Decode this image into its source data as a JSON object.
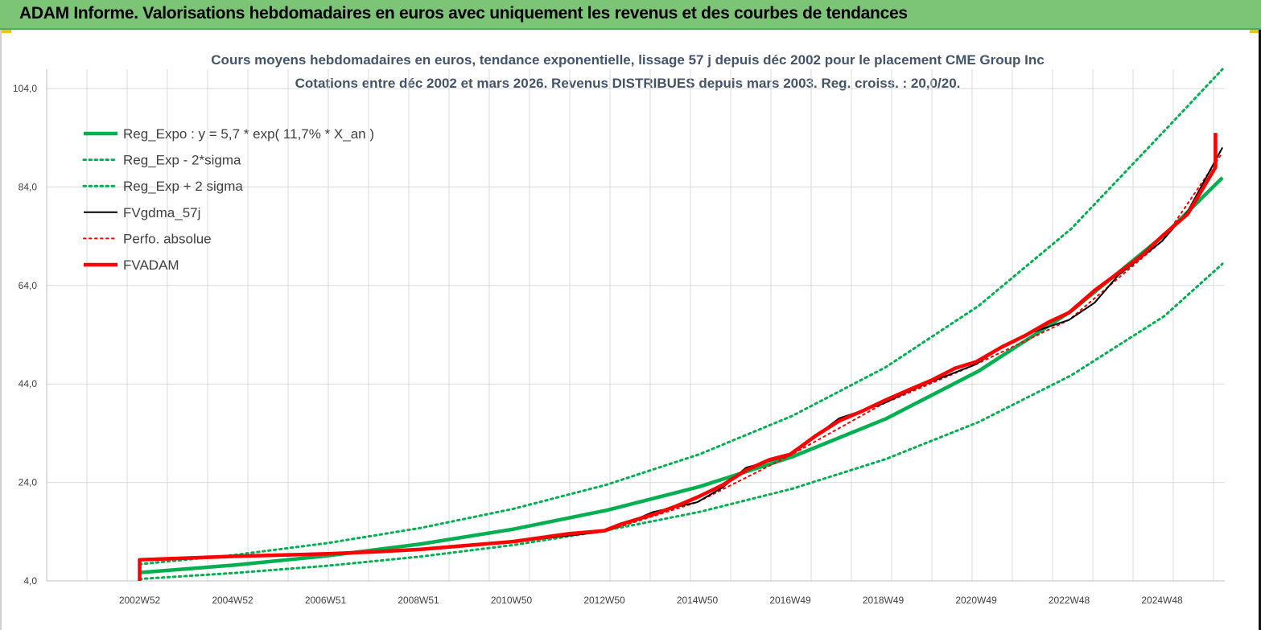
{
  "header": {
    "title": "ADAM Informe. Valorisations hebdomadaires en euros avec uniquement les revenus et des courbes de tendances"
  },
  "colors": {
    "header_bg": "#7cc576",
    "green": "#00b050",
    "black": "#000000",
    "red": "#ff0000",
    "grid": "#d9d9d9"
  },
  "chart_data": {
    "type": "line",
    "title_line1": "Cours moyens hebdomadaires en euros, tendance exponentielle, lissage 57 j depuis déc 2002 pour le placement CME Group Inc",
    "title_line2": "Cotations entre déc 2002 et mars 2026. Revenus DISTRIBUES depuis mars 2003. Reg. croiss. : 20,0/20.",
    "ylim": [
      4,
      104
    ],
    "yticks": [
      4,
      24,
      44,
      64,
      84,
      104
    ],
    "ytick_labels": [
      "4,0",
      "24,0",
      "44,0",
      "64,0",
      "84,0",
      "104,0"
    ],
    "xlim": [
      2000.95,
      2026.3
    ],
    "xticks": [
      2002.95,
      2004.95,
      2006.95,
      2008.95,
      2010.95,
      2012.95,
      2014.95,
      2016.95,
      2018.95,
      2020.95,
      2022.95,
      2024.95
    ],
    "xtick_labels": [
      "2002W52",
      "2004W52",
      "2006W51",
      "2008W51",
      "2010W50",
      "2012W50",
      "2014W50",
      "2016W49",
      "2018W49",
      "2020W49",
      "2022W48",
      "2024W48"
    ],
    "legend_position": "top-left",
    "series": [
      {
        "name": "Reg_Expo : y = 5,7 * exp( 11,7% *  X_an )",
        "color": "#00b050",
        "style": "solid-thick",
        "x": [
          2002.95,
          2005,
          2007,
          2009,
          2011,
          2013,
          2015,
          2017,
          2019,
          2021,
          2023,
          2025,
          2026.25
        ],
        "values": [
          5.7,
          7.22,
          9.11,
          11.5,
          14.52,
          18.34,
          23.15,
          29.23,
          36.9,
          46.59,
          58.82,
          74.26,
          85.9
        ]
      },
      {
        "name": "Reg_Exp - 2*sigma",
        "color": "#00b050",
        "style": "dotted",
        "x": [
          2002.95,
          2005,
          2007,
          2009,
          2011,
          2013,
          2015,
          2017,
          2019,
          2021,
          2023,
          2025,
          2026.25
        ],
        "values": [
          4.4,
          5.61,
          7.09,
          8.95,
          11.3,
          14.27,
          18.02,
          22.74,
          28.72,
          36.26,
          45.77,
          57.79,
          68.4
        ]
      },
      {
        "name": "Reg_Exp + 2 sigma",
        "color": "#00b050",
        "style": "dotted",
        "x": [
          2002.95,
          2005,
          2007,
          2009,
          2011,
          2013,
          2015,
          2017,
          2019,
          2021,
          2023,
          2025,
          2026.25
        ],
        "values": [
          7.4,
          9.28,
          11.7,
          14.77,
          18.65,
          23.55,
          29.73,
          37.54,
          47.39,
          59.84,
          75.55,
          95.39,
          110.3
        ]
      },
      {
        "name": "FVgdma_57j",
        "color": "#000000",
        "style": "solid",
        "x": [
          2003.1,
          2005,
          2007,
          2009,
          2011,
          2012.95,
          2013.5,
          2014,
          2014.95,
          2015.5,
          2016,
          2016.95,
          2017.5,
          2018,
          2018.95,
          2019.5,
          2020,
          2020.95,
          2021.5,
          2022,
          2022.95,
          2023.5,
          2024,
          2024.95,
          2025.5,
          2026.25
        ],
        "values": [
          8.3,
          9.0,
          9.5,
          10.4,
          12.0,
          14.0,
          16.0,
          18.0,
          20.0,
          23.0,
          27.0,
          29.5,
          33.5,
          37.0,
          40.0,
          42.5,
          44.5,
          48.0,
          51.5,
          54.0,
          57.0,
          60.5,
          66.0,
          73.0,
          79.0,
          92.0
        ]
      },
      {
        "name": "Perfo. absolue",
        "color": "#ff0000",
        "style": "dotted",
        "x": [
          2003.1,
          2005,
          2007,
          2009,
          2011,
          2012.95,
          2014.95,
          2016.95,
          2018.95,
          2020.95,
          2022.95,
          2024.95,
          2026.25
        ],
        "values": [
          8.3,
          8.9,
          9.4,
          10.3,
          11.9,
          14.0,
          20.0,
          29.5,
          40.0,
          48.0,
          57.0,
          73.0,
          91.0
        ]
      },
      {
        "name": "FVADAM",
        "color": "#ff0000",
        "style": "solid-thick",
        "x": [
          2002.95,
          2002.95,
          2005,
          2007,
          2008,
          2009,
          2010,
          2011,
          2011.6,
          2012.2,
          2012.95,
          2013.3,
          2014,
          2014.5,
          2014.95,
          2015.5,
          2016,
          2016.5,
          2016.95,
          2017.5,
          2018,
          2018.5,
          2018.95,
          2019.5,
          2020,
          2020.5,
          2020.95,
          2021.5,
          2022,
          2022.5,
          2022.95,
          2023.5,
          2024,
          2024.5,
          2024.95,
          2025.5,
          2026.1,
          2026.1
        ],
        "values": [
          4.0,
          8.3,
          9.0,
          9.5,
          9.9,
          10.4,
          11.2,
          12.0,
          12.8,
          13.6,
          14.2,
          15.5,
          17.5,
          19.2,
          21.0,
          23.5,
          26.5,
          28.6,
          29.7,
          33.5,
          36.5,
          38.5,
          40.5,
          42.8,
          44.8,
          47.2,
          48.5,
          51.5,
          53.8,
          56.5,
          58.5,
          63.0,
          66.5,
          70.0,
          74.0,
          78.5,
          88.0,
          95.0
        ]
      }
    ]
  }
}
